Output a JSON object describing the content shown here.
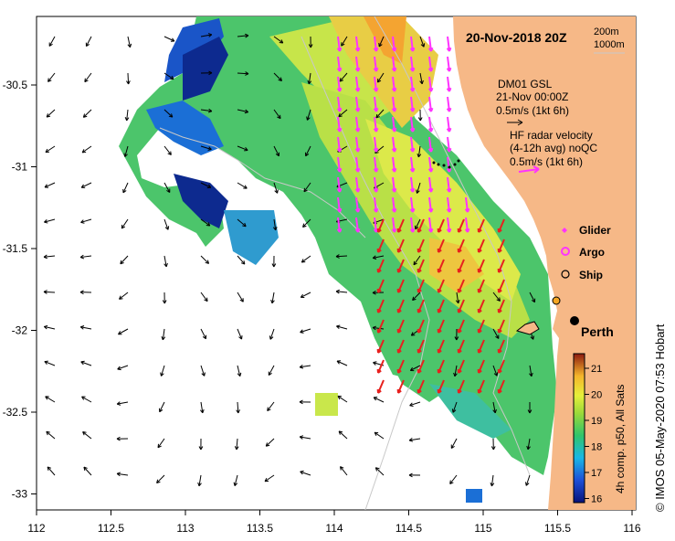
{
  "map": {
    "title": "20-Nov-2018 20Z",
    "xticks": [
      "112",
      "112.5",
      "113",
      "113.5",
      "114",
      "114.5",
      "115",
      "115.5",
      "116"
    ],
    "yticks": [
      "-30.5",
      "-31",
      "-31.5",
      "-32",
      "-32.5",
      "-33"
    ],
    "depth_legend": [
      "200m",
      "1000m"
    ],
    "wind_legend": [
      "DM01 GSL",
      "21-Nov 00:00Z",
      "0.5m/s (1kt 6h)"
    ],
    "radar_legend": [
      "HF radar velocity",
      "(4-12h avg) noQC",
      "0.5m/s (1kt 6h)"
    ],
    "symbol_legend": [
      "Glider",
      "Argo",
      "Ship"
    ],
    "city": "Perth",
    "colorbar": {
      "ticks": [
        "21",
        "20",
        "19",
        "18",
        "17",
        "16"
      ],
      "label": "4h comp. p50, All Sats"
    },
    "credit": "© IMOS 05-May-2020 07:53 Hobart",
    "colors": {
      "land": "#f6b887",
      "radar_arrow": "#ff33ff",
      "model_arrow_red": "#e8201e",
      "glider": "#ff33ff",
      "argo": "#ff33ff",
      "ship": "#000000",
      "contour": "#c8c8c8"
    }
  }
}
